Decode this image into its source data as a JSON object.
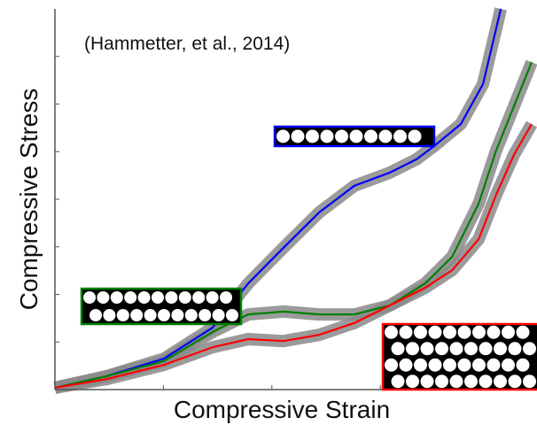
{
  "chart_data": {
    "type": "line",
    "x_label": "Compressive Strain",
    "y_label": "Compressive Stress",
    "annotation": "(Hammetter, et al., 2014)",
    "xlim": [
      0,
      10
    ],
    "ylim": [
      0,
      8
    ],
    "xticks": [
      2.25,
      4.5,
      6.75,
      9
    ],
    "yticks": [
      1,
      2,
      3,
      4,
      5,
      6,
      7
    ],
    "series": [
      {
        "color": "#0000ff",
        "x": [
          0,
          1.07,
          2.26,
          3.27,
          4.01,
          4.74,
          5.48,
          6.21,
          6.95,
          7.5,
          7.87,
          8.42,
          8.88,
          9.25
        ],
        "values": [
          0.04,
          0.28,
          0.65,
          1.3,
          2.23,
          2.98,
          3.72,
          4.28,
          4.56,
          4.84,
          5.12,
          5.58,
          6.42,
          8.0
        ]
      },
      {
        "color": "#008000",
        "x": [
          0,
          1.07,
          2.26,
          3.27,
          4.01,
          4.74,
          5.48,
          6.21,
          6.95,
          7.68,
          8.24,
          8.79,
          9.15,
          9.52,
          9.89
        ],
        "values": [
          0.04,
          0.28,
          0.6,
          1.21,
          1.58,
          1.64,
          1.58,
          1.58,
          1.77,
          2.23,
          2.79,
          3.91,
          5.02,
          5.95,
          6.88
        ]
      },
      {
        "color": "#ff0000",
        "x": [
          0,
          1.07,
          2.26,
          3.27,
          4.01,
          4.74,
          5.48,
          6.21,
          6.95,
          7.68,
          8.24,
          8.79,
          9.15,
          9.52,
          9.89
        ],
        "values": [
          0.04,
          0.22,
          0.52,
          0.89,
          1.06,
          1.02,
          1.15,
          1.4,
          1.77,
          2.14,
          2.51,
          3.16,
          4.09,
          4.93,
          5.58
        ]
      }
    ]
  }
}
